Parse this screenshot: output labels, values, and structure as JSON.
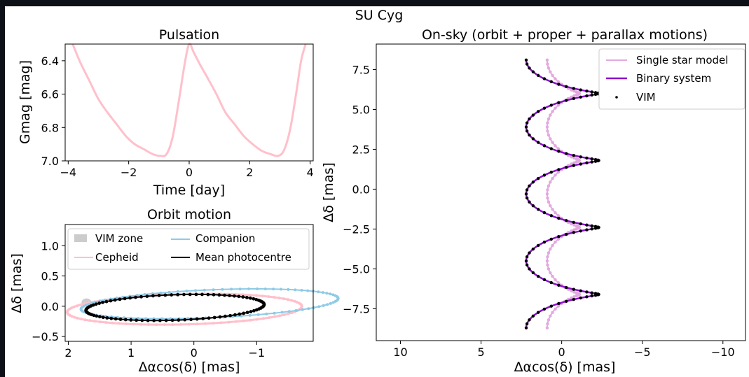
{
  "chart_data": {
    "suptitle": "SU Cyg",
    "panels": [
      {
        "type": "line",
        "title": "Pulsation",
        "xlabel": "Time [day]",
        "ylabel": "Gmag [mag]",
        "xlim": [
          -4.1,
          4.1
        ],
        "ylim": [
          7.0,
          6.3
        ],
        "xticks": [
          -4,
          -2,
          0,
          2,
          4
        ],
        "xticklabels": [
          "−4",
          "−2",
          "0",
          "2",
          "4"
        ],
        "yticks": [
          6.4,
          6.6,
          6.8,
          7.0
        ],
        "yticklabels": [
          "6.4",
          "6.6",
          "6.8",
          "7.0"
        ],
        "series": [
          {
            "color": "#ffc0cb",
            "x": [
              -3.85,
              -3.6,
              -3.3,
              -3.0,
              -2.7,
              -2.4,
              -2.1,
              -1.8,
              -1.5,
              -1.2,
              -0.95,
              -0.75,
              -0.55,
              -0.35,
              -0.15,
              0.0,
              0.15,
              0.35,
              0.6,
              0.9,
              1.2,
              1.5,
              1.8,
              2.1,
              2.4,
              2.7,
              2.95,
              3.15,
              3.35,
              3.55,
              3.7,
              3.85
            ],
            "y": [
              6.3,
              6.41,
              6.52,
              6.63,
              6.71,
              6.78,
              6.85,
              6.9,
              6.93,
              6.96,
              6.97,
              6.96,
              6.86,
              6.65,
              6.42,
              6.3,
              6.35,
              6.42,
              6.5,
              6.6,
              6.71,
              6.78,
              6.85,
              6.9,
              6.94,
              6.96,
              6.97,
              6.93,
              6.8,
              6.58,
              6.4,
              6.3
            ]
          }
        ]
      },
      {
        "type": "line",
        "title": "Orbit motion",
        "xlabel": "Δαcos(δ) [mas]",
        "ylabel": "Δδ [mas]",
        "xlim": [
          2.05,
          -1.9
        ],
        "ylim": [
          -0.58,
          1.35
        ],
        "xticks": [
          2,
          1,
          0,
          -1
        ],
        "xticklabels": [
          "2",
          "1",
          "0",
          "−1"
        ],
        "yticks": [
          -0.5,
          0.0,
          0.5,
          1.0
        ],
        "yticklabels": [
          "−0.5",
          "0.0",
          "0.5",
          "1.0"
        ],
        "legend": [
          "VIM zone",
          "Companion",
          "Cepheid",
          "Mean photocentre"
        ],
        "series": [
          {
            "name": "Cepheid",
            "color": "#ffc0cb",
            "center": [
              0.15,
              -0.05
            ],
            "semi_x": 1.87,
            "semi_y": 0.25,
            "tilt_deg": -1.5
          },
          {
            "name": "Companion",
            "color": "#8ecae6",
            "center": [
              -0.25,
              0.04
            ],
            "semi_x": 2.05,
            "semi_y": 0.23,
            "tilt_deg": -2.5
          },
          {
            "name": "Mean photocentre",
            "color": "#000000",
            "center": [
              0.3,
              -0.02
            ],
            "semi_x": 1.42,
            "semi_y": 0.21,
            "tilt_deg": -2.0
          }
        ],
        "vim_zone": {
          "center": [
            1.71,
            0.06
          ],
          "semi_x": 0.08,
          "semi_y": 0.07
        }
      },
      {
        "type": "line",
        "title": "On-sky (orbit + proper + parallax motions)",
        "xlabel": "Δαcos(δ) [mas]",
        "ylabel": "Δδ [mas]",
        "xlim": [
          11.5,
          -11.4
        ],
        "ylim": [
          -9.5,
          9.1
        ],
        "xticks": [
          10,
          5,
          0,
          -5,
          -10
        ],
        "xticklabels": [
          "10",
          "5",
          "0",
          "−5",
          "−10"
        ],
        "yticks": [
          -7.5,
          -5.0,
          -2.5,
          0.0,
          2.5,
          5.0,
          7.5
        ],
        "yticklabels": [
          "−7.5",
          "−5.0",
          "−2.5",
          "0.0",
          "2.5",
          "5.0",
          "7.5"
        ],
        "legend": [
          "Single star model",
          "Binary system",
          "VIM"
        ],
        "series": [
          {
            "name": "Single star model",
            "color": "#e3a8e0",
            "y_start": -8.7,
            "y_end": 8.1,
            "loops": 4,
            "x_left": -1.1,
            "x_right": 0.9
          },
          {
            "name": "Binary system",
            "color": "#8a12c7",
            "y_start": -8.7,
            "y_end": 8.1,
            "loops": 4,
            "x_left": -2.3,
            "x_right": 2.2
          }
        ]
      }
    ]
  }
}
